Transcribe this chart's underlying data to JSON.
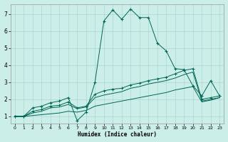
{
  "xlabel": "Humidex (Indice chaleur)",
  "background_color": "#cceee8",
  "grid_color": "#aad8d0",
  "line_color": "#006655",
  "xlim": [
    -0.5,
    23.5
  ],
  "ylim": [
    0.6,
    7.6
  ],
  "xticks": [
    0,
    1,
    2,
    3,
    4,
    5,
    6,
    7,
    8,
    9,
    10,
    11,
    12,
    13,
    14,
    15,
    16,
    17,
    18,
    19,
    20,
    21,
    22,
    23
  ],
  "yticks": [
    1,
    2,
    3,
    4,
    5,
    6,
    7
  ],
  "series1_x": [
    0,
    1,
    2,
    3,
    4,
    5,
    6,
    7,
    8,
    9,
    10,
    11,
    12,
    13,
    14,
    15,
    16,
    17,
    18,
    19,
    20,
    21,
    22,
    23
  ],
  "series1_y": [
    1.0,
    1.0,
    1.5,
    1.6,
    1.8,
    1.9,
    2.1,
    0.75,
    1.25,
    3.0,
    6.6,
    7.25,
    6.7,
    7.3,
    6.8,
    6.8,
    5.3,
    4.85,
    3.8,
    3.75,
    2.8,
    2.2,
    3.1,
    2.2
  ],
  "series2_x": [
    0,
    1,
    2,
    3,
    4,
    5,
    6,
    7,
    8,
    9,
    10,
    11,
    12,
    13,
    14,
    15,
    16,
    17,
    18,
    19,
    20,
    21,
    22,
    23
  ],
  "series2_y": [
    1.0,
    1.0,
    1.3,
    1.4,
    1.6,
    1.65,
    1.85,
    1.5,
    1.6,
    2.3,
    2.5,
    2.6,
    2.65,
    2.85,
    2.95,
    3.1,
    3.2,
    3.3,
    3.5,
    3.7,
    3.8,
    2.0,
    2.1,
    2.2
  ],
  "series3_x": [
    0,
    1,
    2,
    3,
    4,
    5,
    6,
    7,
    8,
    9,
    10,
    11,
    12,
    13,
    14,
    15,
    16,
    17,
    18,
    19,
    20,
    21,
    22,
    23
  ],
  "series3_y": [
    1.0,
    1.0,
    1.2,
    1.3,
    1.5,
    1.55,
    1.7,
    1.45,
    1.55,
    2.1,
    2.25,
    2.35,
    2.45,
    2.65,
    2.75,
    2.9,
    3.0,
    3.1,
    3.25,
    3.45,
    3.6,
    1.9,
    2.0,
    2.1
  ],
  "series4_x": [
    0,
    1,
    2,
    3,
    4,
    5,
    6,
    7,
    8,
    9,
    10,
    11,
    12,
    13,
    14,
    15,
    16,
    17,
    18,
    19,
    20,
    21,
    22,
    23
  ],
  "series4_y": [
    1.0,
    1.0,
    1.05,
    1.1,
    1.15,
    1.2,
    1.3,
    1.25,
    1.35,
    1.6,
    1.7,
    1.8,
    1.9,
    2.0,
    2.1,
    2.2,
    2.3,
    2.4,
    2.55,
    2.65,
    2.75,
    1.85,
    1.95,
    2.1
  ]
}
